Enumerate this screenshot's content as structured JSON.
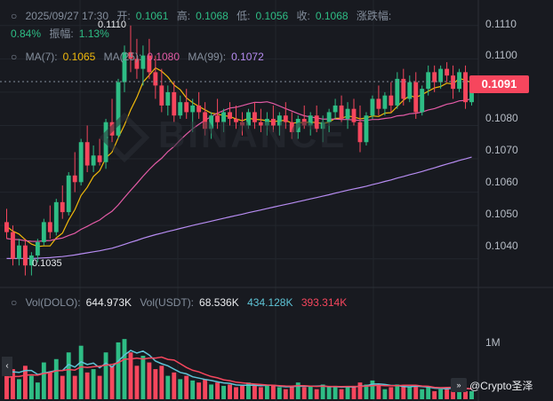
{
  "header": {
    "datetime": "2025/09/27 17:30",
    "open_label": "开:",
    "open": "0.1061",
    "high_label": "高:",
    "high": "0.1068",
    "low_label": "低:",
    "low": "0.1056",
    "close_label": "收:",
    "close": "0.1068",
    "change_label": "涨跌幅:",
    "change": "0.84%",
    "amplitude_label": "振幅:",
    "amplitude": "1.13%"
  },
  "ma": {
    "ma7_label": "MA(7):",
    "ma7": "0.1065",
    "ma25_label": "MA(25):",
    "ma25": "0.1080",
    "ma99_label": "MA(99):",
    "ma99": "0.1072"
  },
  "volume": {
    "vol_dolo_label": "Vol(DOLO):",
    "vol_dolo": "644.973K",
    "vol_usdt_label": "Vol(USDT):",
    "vol_usdt": "68.536K",
    "vol_ma1": "434.128K",
    "vol_ma2": "393.314K",
    "axis_label": "1M"
  },
  "price_axis": [
    "0.1110",
    "0.1100",
    "0.1080",
    "0.1070",
    "0.1060",
    "0.1050",
    "0.1040"
  ],
  "current_price": "0.1091",
  "chart_low_label": "0.1035",
  "chart_high_label": "0.1110",
  "watermark_text": "BINANCE",
  "brand": "@Crypto圣泽",
  "colors": {
    "up": "#2ebd85",
    "down": "#f6465d",
    "ma7": "#f0b90b",
    "ma25": "#e35ba6",
    "ma99": "#b78cf2",
    "bg": "#181a20"
  },
  "chart_data": {
    "type": "candlestick",
    "price_range": [
      0.1033,
      0.1115
    ],
    "candles": [
      [
        0.1051,
        0.1055,
        0.1046,
        0.1048
      ],
      [
        0.1048,
        0.105,
        0.1038,
        0.104
      ],
      [
        0.104,
        0.1046,
        0.1038,
        0.1044
      ],
      [
        0.1044,
        0.1046,
        0.1035,
        0.1038
      ],
      [
        0.1038,
        0.1042,
        0.1035,
        0.1041
      ],
      [
        0.1041,
        0.1046,
        0.1039,
        0.1045
      ],
      [
        0.1045,
        0.1052,
        0.1044,
        0.1051
      ],
      [
        0.1051,
        0.1056,
        0.1046,
        0.1048
      ],
      [
        0.1048,
        0.1058,
        0.1047,
        0.1057
      ],
      [
        0.1057,
        0.1062,
        0.1052,
        0.1054
      ],
      [
        0.1054,
        0.1066,
        0.1053,
        0.1065
      ],
      [
        0.1065,
        0.1072,
        0.106,
        0.1063
      ],
      [
        0.1063,
        0.1076,
        0.1062,
        0.1075
      ],
      [
        0.1075,
        0.108,
        0.1066,
        0.1068
      ],
      [
        0.1068,
        0.1074,
        0.1066,
        0.1071
      ],
      [
        0.1071,
        0.1076,
        0.1068,
        0.1069
      ],
      [
        0.1069,
        0.1082,
        0.1067,
        0.1081
      ],
      [
        0.1081,
        0.1088,
        0.1075,
        0.1077
      ],
      [
        0.1077,
        0.1094,
        0.1076,
        0.1093
      ],
      [
        0.1093,
        0.1104,
        0.109,
        0.1102
      ],
      [
        0.1102,
        0.111,
        0.1096,
        0.11
      ],
      [
        0.11,
        0.1106,
        0.1094,
        0.1097
      ],
      [
        0.1097,
        0.1104,
        0.1092,
        0.1101
      ],
      [
        0.1101,
        0.1106,
        0.1094,
        0.1096
      ],
      [
        0.1096,
        0.1101,
        0.1088,
        0.1092
      ],
      [
        0.1092,
        0.1097,
        0.1084,
        0.1086
      ],
      [
        0.1086,
        0.1092,
        0.1083,
        0.109
      ],
      [
        0.109,
        0.1093,
        0.1081,
        0.1083
      ],
      [
        0.1083,
        0.1089,
        0.1082,
        0.1087
      ],
      [
        0.1087,
        0.1091,
        0.1082,
        0.1084
      ],
      [
        0.1084,
        0.1088,
        0.1078,
        0.1086
      ],
      [
        0.1086,
        0.109,
        0.1082,
        0.1084
      ],
      [
        0.1084,
        0.1087,
        0.1077,
        0.1079
      ],
      [
        0.1079,
        0.1084,
        0.1076,
        0.1083
      ],
      [
        0.1083,
        0.1088,
        0.1079,
        0.1081
      ],
      [
        0.1081,
        0.1085,
        0.1078,
        0.1084
      ],
      [
        0.1084,
        0.1087,
        0.108,
        0.1082
      ],
      [
        0.1082,
        0.1086,
        0.1079,
        0.1081
      ],
      [
        0.1081,
        0.1084,
        0.1077,
        0.108
      ],
      [
        0.108,
        0.1085,
        0.1079,
        0.1084
      ],
      [
        0.1084,
        0.1087,
        0.1079,
        0.1081
      ],
      [
        0.1081,
        0.1085,
        0.1078,
        0.108
      ],
      [
        0.108,
        0.1084,
        0.1077,
        0.1082
      ],
      [
        0.1082,
        0.1086,
        0.1078,
        0.108
      ],
      [
        0.108,
        0.1084,
        0.1077,
        0.1083
      ],
      [
        0.1083,
        0.1087,
        0.1079,
        0.1081
      ],
      [
        0.1081,
        0.1084,
        0.1076,
        0.1078
      ],
      [
        0.1078,
        0.1083,
        0.1076,
        0.1082
      ],
      [
        0.1082,
        0.1086,
        0.1079,
        0.108
      ],
      [
        0.108,
        0.1084,
        0.1077,
        0.1083
      ],
      [
        0.1083,
        0.1086,
        0.1078,
        0.1079
      ],
      [
        0.1079,
        0.1083,
        0.1075,
        0.1081
      ],
      [
        0.1081,
        0.1085,
        0.1078,
        0.1084
      ],
      [
        0.1084,
        0.1088,
        0.1082,
        0.1086
      ],
      [
        0.1086,
        0.1089,
        0.1081,
        0.1082
      ],
      [
        0.1082,
        0.1087,
        0.1079,
        0.1085
      ],
      [
        0.1085,
        0.1088,
        0.108,
        0.1081
      ],
      [
        0.1081,
        0.1086,
        0.1072,
        0.1075
      ],
      [
        0.1075,
        0.1084,
        0.1074,
        0.1083
      ],
      [
        0.1083,
        0.1089,
        0.1082,
        0.1088
      ],
      [
        0.1088,
        0.1092,
        0.1083,
        0.1085
      ],
      [
        0.1085,
        0.109,
        0.1083,
        0.1089
      ],
      [
        0.1089,
        0.1093,
        0.1084,
        0.1086
      ],
      [
        0.1086,
        0.1096,
        0.1085,
        0.1094
      ],
      [
        0.1094,
        0.1097,
        0.1086,
        0.1088
      ],
      [
        0.1088,
        0.1095,
        0.1087,
        0.1093
      ],
      [
        0.1093,
        0.1096,
        0.1082,
        0.1084
      ],
      [
        0.1084,
        0.1092,
        0.1083,
        0.1091
      ],
      [
        0.1091,
        0.1098,
        0.1089,
        0.1096
      ],
      [
        0.1096,
        0.1098,
        0.109,
        0.1093
      ],
      [
        0.1093,
        0.1098,
        0.1091,
        0.1097
      ],
      [
        0.1097,
        0.1099,
        0.1093,
        0.1095
      ],
      [
        0.1095,
        0.1098,
        0.1088,
        0.1091
      ],
      [
        0.1091,
        0.1097,
        0.109,
        0.1096
      ],
      [
        0.1096,
        0.1098,
        0.1085,
        0.1087
      ],
      [
        0.1087,
        0.1093,
        0.1086,
        0.1091
      ]
    ],
    "volumes": [
      0.55,
      0.45,
      0.3,
      0.5,
      0.35,
      0.25,
      0.55,
      0.4,
      0.6,
      0.35,
      0.7,
      0.35,
      0.8,
      0.4,
      0.45,
      0.35,
      0.7,
      0.5,
      0.85,
      0.9,
      0.7,
      0.5,
      0.65,
      0.55,
      0.45,
      0.5,
      0.35,
      0.4,
      0.3,
      0.35,
      0.28,
      0.25,
      0.3,
      0.22,
      0.25,
      0.2,
      0.22,
      0.18,
      0.2,
      0.25,
      0.2,
      0.18,
      0.22,
      0.2,
      0.18,
      0.15,
      0.2,
      0.25,
      0.18,
      0.2,
      0.15,
      0.22,
      0.18,
      0.2,
      0.15,
      0.18,
      0.2,
      0.25,
      0.22,
      0.28,
      0.2,
      0.15,
      0.18,
      0.22,
      0.2,
      0.18,
      0.2,
      0.15,
      0.18,
      0.12,
      0.15,
      0.18,
      0.2,
      0.15,
      0.12,
      0.12
    ],
    "volume_range": [
      0,
      1.3
    ]
  }
}
